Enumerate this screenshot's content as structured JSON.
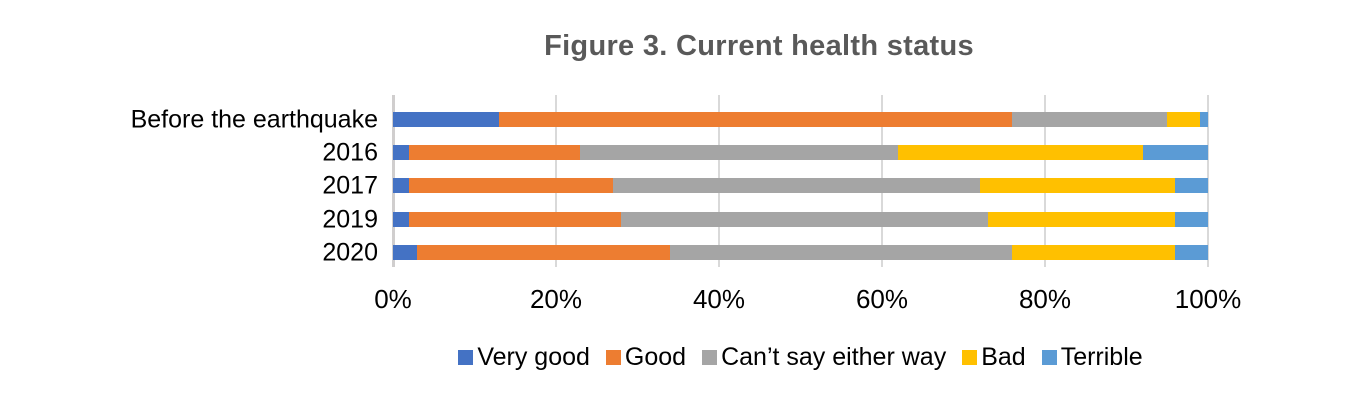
{
  "chart_data": {
    "type": "bar",
    "stacked": true,
    "orientation": "horizontal",
    "title": "Figure 3. Current health status",
    "title_color": "#595959",
    "text_color": "#000000",
    "background": "#FFFFFF",
    "categories": [
      "Before the earthquake",
      "2016",
      "2017",
      "2019",
      "2020"
    ],
    "series": [
      {
        "name": "Very good",
        "color": "#4472C4",
        "values": [
          13,
          2,
          2,
          2,
          3
        ]
      },
      {
        "name": "Good",
        "color": "#ED7D31",
        "values": [
          63,
          21,
          25,
          26,
          31
        ]
      },
      {
        "name": "Can’t say either way",
        "color": "#A5A5A5",
        "values": [
          19,
          39,
          45,
          45,
          42
        ]
      },
      {
        "name": "Bad",
        "color": "#FFC000",
        "values": [
          4,
          30,
          24,
          23,
          20
        ]
      },
      {
        "name": "Terrible",
        "color": "#5B9BD5",
        "values": [
          1,
          8,
          4,
          4,
          4
        ]
      }
    ],
    "x_axis": {
      "min": 0,
      "max": 100,
      "tick_values": [
        0,
        20,
        40,
        60,
        80,
        100
      ],
      "tick_labels": [
        "0%",
        "20%",
        "40%",
        "60%",
        "80%",
        "100%"
      ],
      "gridlines": true,
      "gridline_color": "#D9D9D9",
      "axis_line_color": "#D0CECE"
    },
    "legend_position": "bottom"
  }
}
